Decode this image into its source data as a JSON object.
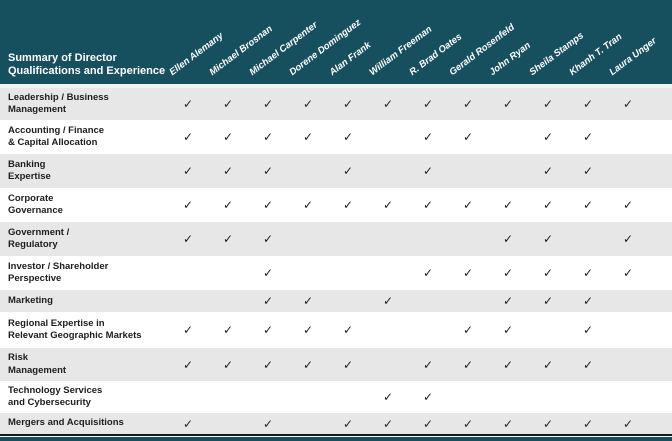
{
  "header": {
    "title": "Summary of Director\nQualifications and Experience"
  },
  "directors": [
    "Ellen Alemany",
    "Michael Brosnan",
    "Michael Carpenter",
    "Dorene Dominguez",
    "Alan Frank",
    "William Freeman",
    "R. Brad Oates",
    "Gerald Rosenfeld",
    "John Ryan",
    "Sheila Stamps",
    "Khanh T. Tran",
    "Laura Unger"
  ],
  "check_glyph": "✓",
  "rows": [
    {
      "label": "Leadership / Business\nManagement",
      "checks": [
        1,
        1,
        1,
        1,
        1,
        1,
        1,
        1,
        1,
        1,
        1,
        1
      ]
    },
    {
      "label": "Accounting / Finance\n& Capital Allocation",
      "checks": [
        1,
        1,
        1,
        1,
        1,
        0,
        1,
        1,
        0,
        1,
        1,
        0
      ]
    },
    {
      "label": "Banking\nExpertise",
      "checks": [
        1,
        1,
        1,
        0,
        1,
        0,
        1,
        0,
        0,
        1,
        1,
        0
      ]
    },
    {
      "label": "Corporate\nGovernance",
      "checks": [
        1,
        1,
        1,
        1,
        1,
        1,
        1,
        1,
        1,
        1,
        1,
        1
      ]
    },
    {
      "label": "Government /\nRegulatory",
      "checks": [
        1,
        1,
        1,
        0,
        0,
        0,
        0,
        0,
        1,
        1,
        0,
        1
      ]
    },
    {
      "label": "Investor / Shareholder\nPerspective",
      "checks": [
        0,
        0,
        1,
        0,
        0,
        0,
        1,
        1,
        1,
        1,
        1,
        1
      ]
    },
    {
      "label": "Marketing",
      "checks": [
        0,
        0,
        1,
        1,
        0,
        1,
        0,
        0,
        1,
        1,
        1,
        0
      ]
    },
    {
      "label": "Regional Expertise in\nRelevant Geographic Markets",
      "checks": [
        1,
        1,
        1,
        1,
        1,
        0,
        0,
        1,
        1,
        0,
        1,
        0
      ]
    },
    {
      "label": "Risk\nManagement",
      "checks": [
        1,
        1,
        1,
        1,
        1,
        0,
        1,
        1,
        1,
        1,
        1,
        0
      ]
    },
    {
      "label": "Technology Services\nand Cybersecurity",
      "checks": [
        0,
        0,
        0,
        0,
        0,
        1,
        1,
        0,
        0,
        0,
        0,
        0
      ]
    },
    {
      "label": "Mergers and Acquisitions",
      "checks": [
        1,
        0,
        1,
        0,
        1,
        1,
        1,
        1,
        1,
        1,
        1,
        1
      ]
    }
  ],
  "colors": {
    "header_teal": "#164f5e",
    "row_shaded": "#e7e7e7",
    "row_plain": "#ffffff",
    "check": "#222222",
    "bottom_line": "#101b22"
  }
}
